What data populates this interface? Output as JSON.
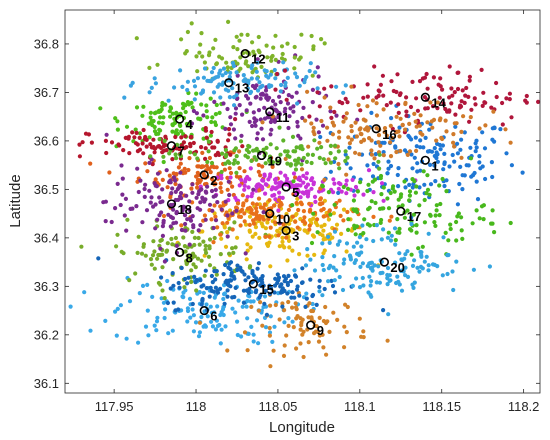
{
  "chart_data": {
    "type": "scatter",
    "xlabel": "Longitude",
    "ylabel": "Latitude",
    "xlim": [
      117.92,
      118.21
    ],
    "ylim": [
      36.08,
      36.87
    ],
    "xticks": [
      117.95,
      118.0,
      118.05,
      118.1,
      118.15,
      118.2
    ],
    "xtick_labels": [
      "117.95",
      "118",
      "118.05",
      "118.1",
      "118.15",
      "118.2"
    ],
    "yticks": [
      36.1,
      36.2,
      36.3,
      36.4,
      36.5,
      36.6,
      36.7,
      36.8
    ],
    "ytick_labels": [
      "36.1",
      "36.2",
      "36.3",
      "36.4",
      "36.5",
      "36.6",
      "36.7",
      "36.8"
    ],
    "grid": false,
    "series": [
      {
        "label": "1",
        "center": [
          118.14,
          36.56
        ],
        "spread": [
          0.028,
          0.045
        ],
        "color": "#1f77d4",
        "n": 160
      },
      {
        "label": "2",
        "center": [
          118.005,
          36.53
        ],
        "spread": [
          0.02,
          0.02
        ],
        "color": "#e0601c",
        "n": 110
      },
      {
        "label": "3",
        "center": [
          118.055,
          36.415
        ],
        "spread": [
          0.025,
          0.028
        ],
        "color": "#e6b80f",
        "n": 150
      },
      {
        "label": "4",
        "center": [
          117.99,
          36.645
        ],
        "spread": [
          0.017,
          0.022
        ],
        "color": "#4fbf1a",
        "n": 110
      },
      {
        "label": "5",
        "center": [
          118.055,
          36.505
        ],
        "spread": [
          0.025,
          0.017
        ],
        "color": "#c832d8",
        "n": 140
      },
      {
        "label": "6",
        "center": [
          118.005,
          36.25
        ],
        "spread": [
          0.028,
          0.035
        ],
        "color": "#39a9e8",
        "n": 150
      },
      {
        "label": "7",
        "center": [
          117.985,
          36.59
        ],
        "spread": [
          0.025,
          0.017
        ],
        "color": "#b5162d",
        "n": 100
      },
      {
        "label": "8",
        "center": [
          117.99,
          36.37
        ],
        "spread": [
          0.02,
          0.03
        ],
        "color": "#78ac2a",
        "n": 110
      },
      {
        "label": "9",
        "center": [
          118.07,
          36.22
        ],
        "spread": [
          0.018,
          0.03
        ],
        "color": "#d2822a",
        "n": 80
      },
      {
        "label": "10",
        "center": [
          118.045,
          36.45
        ],
        "spread": [
          0.027,
          0.02
        ],
        "color": "#e8701a",
        "n": 140
      },
      {
        "label": "11",
        "center": [
          118.045,
          36.66
        ],
        "spread": [
          0.018,
          0.04
        ],
        "color": "#7a2a91",
        "n": 120
      },
      {
        "label": "12",
        "center": [
          118.03,
          36.78
        ],
        "spread": [
          0.022,
          0.025
        ],
        "color": "#7fb32a",
        "n": 90
      },
      {
        "label": "13",
        "center": [
          118.02,
          36.72
        ],
        "spread": [
          0.025,
          0.02
        ],
        "color": "#3aa3e0",
        "n": 110
      },
      {
        "label": "14",
        "center": [
          118.14,
          36.69
        ],
        "spread": [
          0.035,
          0.03
        ],
        "color": "#b0163b",
        "n": 120
      },
      {
        "label": "15",
        "center": [
          118.035,
          36.305
        ],
        "spread": [
          0.028,
          0.025
        ],
        "color": "#1565b8",
        "n": 160
      },
      {
        "label": "16",
        "center": [
          118.11,
          36.625
        ],
        "spread": [
          0.03,
          0.035
        ],
        "color": "#d07a2a",
        "n": 130
      },
      {
        "label": "17",
        "center": [
          118.125,
          36.455
        ],
        "spread": [
          0.027,
          0.04
        ],
        "color": "#48b81c",
        "n": 130
      },
      {
        "label": "18",
        "center": [
          117.985,
          36.47
        ],
        "spread": [
          0.02,
          0.04
        ],
        "color": "#7a2a8f",
        "n": 140
      },
      {
        "label": "19",
        "center": [
          118.04,
          36.57
        ],
        "spread": [
          0.03,
          0.016
        ],
        "color": "#5db329",
        "n": 110
      },
      {
        "label": "20",
        "center": [
          118.115,
          36.35
        ],
        "spread": [
          0.025,
          0.035
        ],
        "color": "#35a5df",
        "n": 140
      }
    ]
  }
}
